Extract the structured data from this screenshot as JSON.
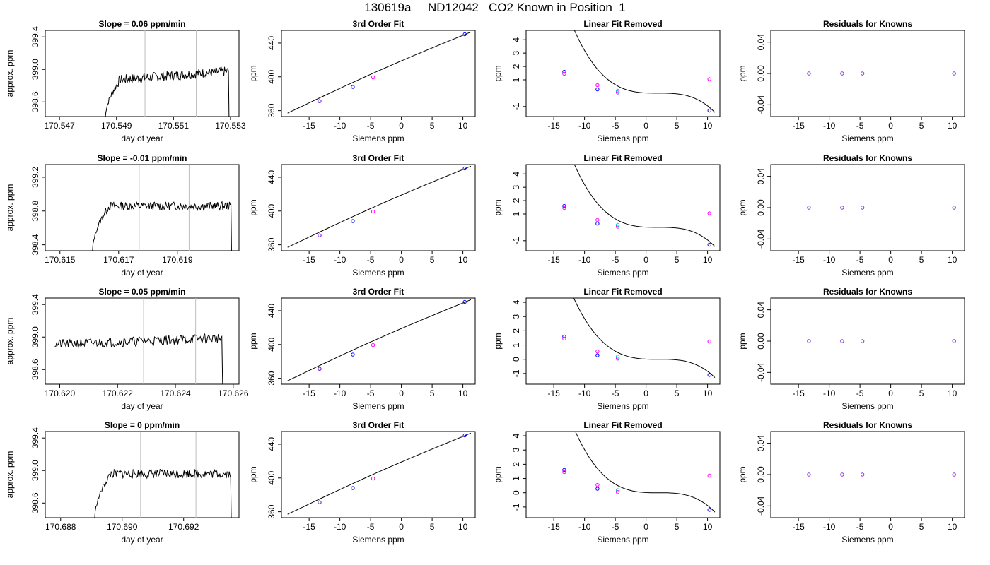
{
  "figure_title": "130619a     ND12042   CO2 Known in Position  1",
  "colors": {
    "line": "#000000",
    "vline": "#bebebe",
    "blue": "#0000ff",
    "magenta": "#ff00ff",
    "cyan": "#00cdcd",
    "purple": "#8a2be2"
  },
  "chart_data": [
    {
      "type": "line",
      "title": "Slope =  0.06  ppm/min",
      "xlabel": "day of year",
      "ylabel": "approx. ppm",
      "xlim": [
        170.5465,
        170.5533
      ],
      "ylim": [
        398.42,
        399.48
      ],
      "xticks": [
        170.547,
        170.549,
        170.551,
        170.553
      ],
      "xtick_labels": [
        "170.547",
        "170.549",
        "170.551",
        "170.553"
      ],
      "yticks": [
        398.6,
        399.0,
        399.4
      ],
      "ytick_labels": [
        "398.6",
        "399.0",
        "399.4"
      ],
      "vlines": [
        170.55,
        170.5518
      ],
      "x_start": 170.5486,
      "x_end": 170.553,
      "base": 398.92,
      "noise": 0.06,
      "rise": 0.12,
      "seed": 7
    },
    {
      "type": "line",
      "title": "3rd Order Fit",
      "xlabel": "Siemens ppm",
      "ylabel": "ppm",
      "xlim": [
        -19.5,
        12
      ],
      "ylim": [
        353,
        455
      ],
      "xticks": [
        -15,
        -10,
        -5,
        0,
        5,
        10
      ],
      "xtick_labels": [
        "-15",
        "-10",
        "-5",
        "0",
        "5",
        "10"
      ],
      "yticks": [
        360,
        400,
        440
      ],
      "ytick_labels": [
        "360",
        "400",
        "440"
      ],
      "curve": {
        "x0": -18.5,
        "y0": 357,
        "x1": 11.3,
        "y1": 453
      },
      "points": [
        {
          "x": -13.3,
          "y": 371.2,
          "color": "blue"
        },
        {
          "x": -13.3,
          "y": 371.2,
          "color": "purple"
        },
        {
          "x": -7.9,
          "y": 388.1,
          "color": "blue"
        },
        {
          "x": -4.6,
          "y": 399.3,
          "color": "magenta"
        },
        {
          "x": 10.3,
          "y": 450.4,
          "color": "blue"
        }
      ]
    },
    {
      "type": "scatter",
      "title": "Linear Fit Removed",
      "xlabel": "Siemens ppm",
      "ylabel": "ppm",
      "xlim": [
        -19.5,
        12
      ],
      "ylim": [
        -1.75,
        4.7
      ],
      "xticks": [
        -15,
        -10,
        -5,
        0,
        5,
        10
      ],
      "xtick_labels": [
        "-15",
        "-10",
        "-5",
        "0",
        "5",
        "10"
      ],
      "yticks": [
        -1,
        1,
        2,
        3,
        4
      ],
      "ytick_labels": [
        "-1",
        "1",
        "2",
        "3",
        "4"
      ],
      "cubic": {
        "a": -0.00185,
        "r": 2
      },
      "points": [
        {
          "x": -13.3,
          "y": 1.6,
          "color": "blue"
        },
        {
          "x": -13.3,
          "y": 1.45,
          "color": "magenta"
        },
        {
          "x": -7.9,
          "y": 0.28,
          "color": "blue"
        },
        {
          "x": -7.9,
          "y": 0.6,
          "color": "magenta"
        },
        {
          "x": -4.6,
          "y": 0.18,
          "color": "cyan"
        },
        {
          "x": -4.6,
          "y": 0.05,
          "color": "magenta"
        },
        {
          "x": 10.3,
          "y": 1.05,
          "color": "magenta"
        },
        {
          "x": 10.3,
          "y": -1.3,
          "color": "blue"
        }
      ]
    },
    {
      "type": "scatter",
      "title": "Residuals for Knowns",
      "xlabel": "Siemens ppm",
      "ylabel": "ppm",
      "xlim": [
        -19.5,
        12
      ],
      "ylim": [
        -0.055,
        0.055
      ],
      "xticks": [
        -15,
        -10,
        -5,
        0,
        5,
        10
      ],
      "xtick_labels": [
        "-15",
        "-10",
        "-5",
        "0",
        "5",
        "10"
      ],
      "yticks": [
        -0.04,
        0.0,
        0.04
      ],
      "ytick_labels": [
        "-0.04",
        "0.00",
        "0.04"
      ],
      "points": [
        {
          "x": -13.3,
          "y": 0,
          "color": "purple"
        },
        {
          "x": -7.9,
          "y": 0,
          "color": "purple"
        },
        {
          "x": -4.6,
          "y": 0,
          "color": "purple"
        },
        {
          "x": 10.3,
          "y": 0,
          "color": "purple"
        }
      ]
    },
    {
      "type": "line",
      "title": "Slope =  -0.01  ppm/min",
      "xlabel": "day of year",
      "ylabel": "approx. ppm",
      "xlim": [
        170.6145,
        170.6211
      ],
      "ylim": [
        398.33,
        399.35
      ],
      "xticks": [
        170.615,
        170.617,
        170.619
      ],
      "xtick_labels": [
        "170.615",
        "170.617",
        "170.619"
      ],
      "yticks": [
        398.4,
        398.8,
        399.2
      ],
      "ytick_labels": [
        "398.4",
        "398.8",
        "399.2"
      ],
      "vlines": [
        170.6177,
        170.6194
      ],
      "x_start": 170.6161,
      "x_end": 170.6209,
      "base": 398.86,
      "noise": 0.05,
      "rise": 0.0,
      "seed": 13
    },
    {
      "type": "line",
      "title": "3rd Order Fit",
      "xlabel": "Siemens ppm",
      "ylabel": "ppm",
      "xlim": [
        -19.5,
        12
      ],
      "ylim": [
        353,
        455
      ],
      "xticks": [
        -15,
        -10,
        -5,
        0,
        5,
        10
      ],
      "xtick_labels": [
        "-15",
        "-10",
        "-5",
        "0",
        "5",
        "10"
      ],
      "yticks": [
        360,
        400,
        440
      ],
      "ytick_labels": [
        "360",
        "400",
        "440"
      ],
      "curve": {
        "x0": -18.5,
        "y0": 357,
        "x1": 11.3,
        "y1": 453
      },
      "points": [
        {
          "x": -13.3,
          "y": 371.2,
          "color": "blue"
        },
        {
          "x": -13.3,
          "y": 371.2,
          "color": "purple"
        },
        {
          "x": -7.9,
          "y": 388.1,
          "color": "blue"
        },
        {
          "x": -4.6,
          "y": 399.3,
          "color": "magenta"
        },
        {
          "x": 10.3,
          "y": 450.4,
          "color": "blue"
        }
      ]
    },
    {
      "type": "scatter",
      "title": "Linear Fit Removed",
      "xlabel": "Siemens ppm",
      "ylabel": "ppm",
      "xlim": [
        -19.5,
        12
      ],
      "ylim": [
        -1.75,
        4.7
      ],
      "xticks": [
        -15,
        -10,
        -5,
        0,
        5,
        10
      ],
      "xtick_labels": [
        "-15",
        "-10",
        "-5",
        "0",
        "5",
        "10"
      ],
      "yticks": [
        -1,
        1,
        2,
        3,
        4
      ],
      "ytick_labels": [
        "-1",
        "1",
        "2",
        "3",
        "4"
      ],
      "cubic": {
        "a": -0.00185,
        "r": 2
      },
      "points": [
        {
          "x": -13.3,
          "y": 1.6,
          "color": "blue"
        },
        {
          "x": -13.3,
          "y": 1.45,
          "color": "magenta"
        },
        {
          "x": -7.9,
          "y": 0.28,
          "color": "blue"
        },
        {
          "x": -7.9,
          "y": 0.55,
          "color": "magenta"
        },
        {
          "x": -4.6,
          "y": 0.18,
          "color": "cyan"
        },
        {
          "x": -4.6,
          "y": 0.05,
          "color": "magenta"
        },
        {
          "x": 10.3,
          "y": 1.05,
          "color": "magenta"
        },
        {
          "x": 10.3,
          "y": -1.3,
          "color": "blue"
        }
      ]
    },
    {
      "type": "scatter",
      "title": "Residuals for Knowns",
      "xlabel": "Siemens ppm",
      "ylabel": "ppm",
      "xlim": [
        -19.5,
        12
      ],
      "ylim": [
        -0.055,
        0.055
      ],
      "xticks": [
        -15,
        -10,
        -5,
        0,
        5,
        10
      ],
      "xtick_labels": [
        "-15",
        "-10",
        "-5",
        "0",
        "5",
        "10"
      ],
      "yticks": [
        -0.04,
        0.0,
        0.04
      ],
      "ytick_labels": [
        "-0.04",
        "0.00",
        "0.04"
      ],
      "points": [
        {
          "x": -13.3,
          "y": 0,
          "color": "purple"
        },
        {
          "x": -7.9,
          "y": 0,
          "color": "purple"
        },
        {
          "x": -4.6,
          "y": 0,
          "color": "purple"
        },
        {
          "x": 10.3,
          "y": 0,
          "color": "purple"
        }
      ]
    },
    {
      "type": "line",
      "title": "Slope =  0.05  ppm/min",
      "xlabel": "day of year",
      "ylabel": "approx. ppm",
      "xlim": [
        170.6195,
        170.6262
      ],
      "ylim": [
        398.42,
        399.48
      ],
      "xticks": [
        170.62,
        170.622,
        170.624,
        170.626
      ],
      "xtick_labels": [
        "170.620",
        "170.622",
        "170.624",
        "170.626"
      ],
      "yticks": [
        398.6,
        399.0,
        399.4
      ],
      "ytick_labels": [
        "398.6",
        "399.0",
        "399.4"
      ],
      "vlines": [
        170.6229,
        170.6247
      ],
      "x_start": 170.6198,
      "x_end": 170.6257,
      "base": 398.95,
      "noise": 0.06,
      "rise": 0.08,
      "seed": 21,
      "no_ramp": true
    },
    {
      "type": "line",
      "title": "3rd Order Fit",
      "xlabel": "Siemens ppm",
      "ylabel": "ppm",
      "xlim": [
        -19.5,
        12
      ],
      "ylim": [
        353,
        455
      ],
      "xticks": [
        -15,
        -10,
        -5,
        0,
        5,
        10
      ],
      "xtick_labels": [
        "-15",
        "-10",
        "-5",
        "0",
        "5",
        "10"
      ],
      "yticks": [
        360,
        400,
        440
      ],
      "ytick_labels": [
        "360",
        "400",
        "440"
      ],
      "curve": {
        "x0": -18.5,
        "y0": 357,
        "x1": 11.3,
        "y1": 453
      },
      "points": [
        {
          "x": -13.3,
          "y": 371.2,
          "color": "blue"
        },
        {
          "x": -13.3,
          "y": 371.2,
          "color": "purple"
        },
        {
          "x": -7.9,
          "y": 388.1,
          "color": "blue"
        },
        {
          "x": -4.6,
          "y": 399.3,
          "color": "magenta"
        },
        {
          "x": 10.3,
          "y": 450.4,
          "color": "blue"
        }
      ]
    },
    {
      "type": "scatter",
      "title": "Linear Fit Removed",
      "xlabel": "Siemens ppm",
      "ylabel": "ppm",
      "xlim": [
        -19.5,
        12
      ],
      "ylim": [
        -1.75,
        4.3
      ],
      "xticks": [
        -15,
        -10,
        -5,
        0,
        5,
        10
      ],
      "xtick_labels": [
        "-15",
        "-10",
        "-5",
        "0",
        "5",
        "10"
      ],
      "yticks": [
        -1,
        0,
        1,
        2,
        3,
        4
      ],
      "ytick_labels": [
        "-1",
        "0",
        "1",
        "2",
        "3",
        "4"
      ],
      "cubic": {
        "a": -0.00165,
        "r": 2
      },
      "points": [
        {
          "x": -13.3,
          "y": 1.6,
          "color": "blue"
        },
        {
          "x": -13.3,
          "y": 1.45,
          "color": "magenta"
        },
        {
          "x": -7.9,
          "y": 0.28,
          "color": "blue"
        },
        {
          "x": -7.9,
          "y": 0.55,
          "color": "magenta"
        },
        {
          "x": -4.6,
          "y": 0.18,
          "color": "cyan"
        },
        {
          "x": -4.6,
          "y": 0.05,
          "color": "magenta"
        },
        {
          "x": 10.3,
          "y": 1.25,
          "color": "magenta"
        },
        {
          "x": 10.3,
          "y": -1.1,
          "color": "blue"
        }
      ]
    },
    {
      "type": "scatter",
      "title": "Residuals for Knowns",
      "xlabel": "Siemens ppm",
      "ylabel": "ppm",
      "xlim": [
        -19.5,
        12
      ],
      "ylim": [
        -0.055,
        0.055
      ],
      "xticks": [
        -15,
        -10,
        -5,
        0,
        5,
        10
      ],
      "xtick_labels": [
        "-15",
        "-10",
        "-5",
        "0",
        "5",
        "10"
      ],
      "yticks": [
        -0.04,
        0.0,
        0.04
      ],
      "ytick_labels": [
        "-0.04",
        "0.00",
        "0.04"
      ],
      "points": [
        {
          "x": -13.3,
          "y": 0,
          "color": "purple"
        },
        {
          "x": -7.9,
          "y": 0,
          "color": "purple"
        },
        {
          "x": -4.6,
          "y": 0,
          "color": "purple"
        },
        {
          "x": 10.3,
          "y": 0,
          "color": "purple"
        }
      ]
    },
    {
      "type": "line",
      "title": "Slope =  0  ppm/min",
      "xlabel": "day of year",
      "ylabel": "approx. ppm",
      "xlim": [
        170.6875,
        170.6938
      ],
      "ylim": [
        398.42,
        399.48
      ],
      "xticks": [
        170.688,
        170.69,
        170.692
      ],
      "xtick_labels": [
        "170.688",
        "170.690",
        "170.692"
      ],
      "yticks": [
        398.6,
        399.0,
        399.4
      ],
      "ytick_labels": [
        "398.6",
        "399.0",
        "399.4"
      ],
      "vlines": [
        170.6906,
        170.6924
      ],
      "x_start": 170.6891,
      "x_end": 170.6936,
      "base": 398.96,
      "noise": 0.055,
      "rise": 0.0,
      "seed": 33
    },
    {
      "type": "line",
      "title": "3rd Order Fit",
      "xlabel": "Siemens ppm",
      "ylabel": "ppm",
      "xlim": [
        -19.5,
        12
      ],
      "ylim": [
        353,
        455
      ],
      "xticks": [
        -15,
        -10,
        -5,
        0,
        5,
        10
      ],
      "xtick_labels": [
        "-15",
        "-10",
        "-5",
        "0",
        "5",
        "10"
      ],
      "yticks": [
        360,
        400,
        440
      ],
      "ytick_labels": [
        "360",
        "400",
        "440"
      ],
      "curve": {
        "x0": -18.5,
        "y0": 357,
        "x1": 11.3,
        "y1": 453
      },
      "points": [
        {
          "x": -13.3,
          "y": 371.2,
          "color": "blue"
        },
        {
          "x": -13.3,
          "y": 371.2,
          "color": "purple"
        },
        {
          "x": -7.9,
          "y": 388.1,
          "color": "blue"
        },
        {
          "x": -4.6,
          "y": 399.3,
          "color": "magenta"
        },
        {
          "x": 10.3,
          "y": 450.4,
          "color": "blue"
        }
      ]
    },
    {
      "type": "scatter",
      "title": "Linear Fit Removed",
      "xlabel": "Siemens ppm",
      "ylabel": "ppm",
      "xlim": [
        -19.5,
        12
      ],
      "ylim": [
        -1.75,
        4.3
      ],
      "xticks": [
        -15,
        -10,
        -5,
        0,
        5,
        10
      ],
      "xtick_labels": [
        "-15",
        "-10",
        "-5",
        "0",
        "5",
        "10"
      ],
      "yticks": [
        -1,
        0,
        1,
        2,
        3,
        4
      ],
      "ytick_labels": [
        "-1",
        "0",
        "1",
        "2",
        "3",
        "4"
      ],
      "cubic": {
        "a": -0.00175,
        "r": 2
      },
      "points": [
        {
          "x": -13.3,
          "y": 1.6,
          "color": "blue"
        },
        {
          "x": -13.3,
          "y": 1.45,
          "color": "magenta"
        },
        {
          "x": -7.9,
          "y": 0.28,
          "color": "blue"
        },
        {
          "x": -7.9,
          "y": 0.55,
          "color": "magenta"
        },
        {
          "x": -4.6,
          "y": 0.18,
          "color": "cyan"
        },
        {
          "x": -4.6,
          "y": 0.05,
          "color": "magenta"
        },
        {
          "x": 10.3,
          "y": 1.2,
          "color": "magenta"
        },
        {
          "x": 10.3,
          "y": -1.2,
          "color": "blue"
        }
      ]
    },
    {
      "type": "scatter",
      "title": "Residuals for Knowns",
      "xlabel": "Siemens ppm",
      "ylabel": "ppm",
      "xlim": [
        -19.5,
        12
      ],
      "ylim": [
        -0.055,
        0.055
      ],
      "xticks": [
        -15,
        -10,
        -5,
        0,
        5,
        10
      ],
      "xtick_labels": [
        "-15",
        "-10",
        "-5",
        "0",
        "5",
        "10"
      ],
      "yticks": [
        -0.04,
        0.0,
        0.04
      ],
      "ytick_labels": [
        "-0.04",
        "0.00",
        "0.04"
      ],
      "points": [
        {
          "x": -13.3,
          "y": 0,
          "color": "purple"
        },
        {
          "x": -7.9,
          "y": 0,
          "color": "purple"
        },
        {
          "x": -4.6,
          "y": 0,
          "color": "purple"
        },
        {
          "x": 10.3,
          "y": 0,
          "color": "purple"
        }
      ]
    }
  ]
}
